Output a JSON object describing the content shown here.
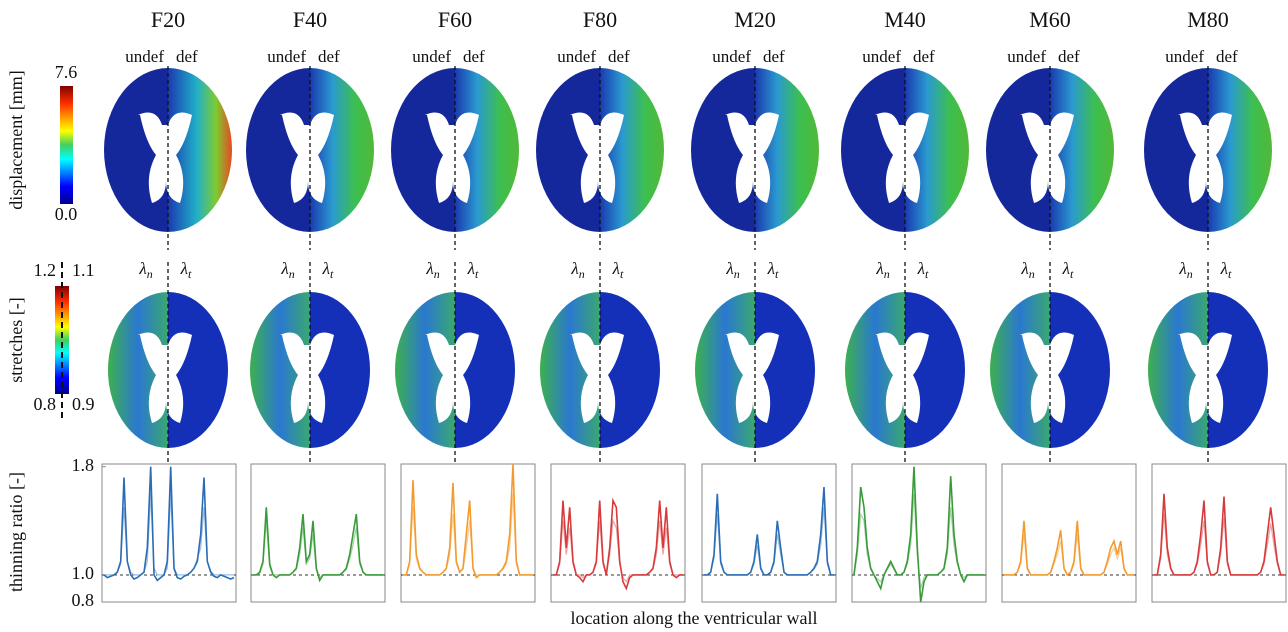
{
  "figure": {
    "columns": [
      "F20",
      "F40",
      "F60",
      "F80",
      "M20",
      "M40",
      "M60",
      "M80"
    ],
    "undeformed_label": "undef",
    "deformed_label": "def",
    "normal_stretch": {
      "symbol": "λ",
      "subscript": "n"
    },
    "tangential_stretch": {
      "symbol": "λ",
      "subscript": "t"
    },
    "displacement_colorbar": {
      "label": "displacement [mm]",
      "max": 7.6,
      "min": {
        "value": 0,
        "label": "0.0"
      }
    },
    "stretch_colorbar": {
      "label": "stretches [-]",
      "normal_max": 1.2,
      "tangential_max": 1.1,
      "normal_min": 0.8,
      "tangential_min": 0.9
    },
    "ylabel": "thinning ratio [-]",
    "xlabel": "location along the ventricular wall"
  },
  "chart_data": [
    {
      "type": "line",
      "ylim": [
        0.8,
        1.82
      ],
      "yticks": [
        0.8,
        {
          "value": 1,
          "label": "1.0"
        },
        1.8
      ],
      "hline": 1,
      "series": [
        {
          "color": "#2a6db5",
          "values": [
            1.0,
            0.98,
            0.99,
            1.0,
            1.02,
            1.1,
            1.72,
            1.1,
            1.0,
            0.97,
            0.98,
            1.0,
            1.02,
            1.2,
            1.8,
            1.0,
            0.96,
            0.98,
            1.0,
            1.1,
            1.8,
            1.05,
            0.98,
            0.97,
            0.99,
            1.0,
            1.02,
            1.05,
            1.1,
            1.3,
            1.72,
            1.1,
            1.02,
            0.99,
            0.98,
            1.0,
            0.99,
            0.98,
            0.97,
            0.98
          ]
        },
        {
          "color": "#9dbde0",
          "values": [
            1.0,
            1.0,
            1.0,
            1.0,
            1.02,
            1.08,
            1.5,
            1.1,
            1.02,
            1.0,
            1.0,
            1.0,
            1.02,
            1.1,
            1.6,
            1.05,
            1.0,
            1.0,
            1.0,
            1.05,
            1.6,
            1.05,
            1.0,
            1.0,
            1.0,
            1.0,
            1.02,
            1.05,
            1.12,
            1.2,
            1.5,
            1.1,
            1.03,
            1.0,
            1.0,
            1.0,
            1.0,
            1.0,
            1.0,
            1.0
          ]
        }
      ]
    },
    {
      "type": "line",
      "ylim": [
        0.8,
        1.82
      ],
      "hline": 1,
      "series": [
        {
          "color": "#3a9a3a",
          "values": [
            1.0,
            1.0,
            1.02,
            1.1,
            1.5,
            1.08,
            1.0,
            0.98,
            1.0,
            1.0,
            1.0,
            1.0,
            1.02,
            1.05,
            1.2,
            1.45,
            1.1,
            1.15,
            1.4,
            1.05,
            0.96,
            1.0,
            1.0,
            1.0,
            1.0,
            1.0,
            1.0,
            1.02,
            1.05,
            1.15,
            1.3,
            1.45,
            1.1,
            1.02,
            1.0,
            1.0,
            1.0,
            1.0,
            1.0,
            1.0
          ]
        },
        {
          "color": "#a6d3a6",
          "values": [
            1.0,
            1.0,
            1.01,
            1.08,
            1.4,
            1.06,
            1.0,
            1.0,
            1.0,
            1.0,
            1.0,
            1.0,
            1.02,
            1.04,
            1.15,
            1.35,
            1.08,
            1.12,
            1.3,
            1.04,
            0.98,
            1.0,
            1.0,
            1.0,
            1.0,
            1.0,
            1.0,
            1.02,
            1.04,
            1.12,
            1.22,
            1.35,
            1.08,
            1.02,
            1.0,
            1.0,
            1.0,
            1.0,
            1.0,
            1.0
          ]
        }
      ]
    },
    {
      "type": "line",
      "ylim": [
        0.8,
        1.82
      ],
      "hline": 1,
      "series": [
        {
          "color": "#f39b30",
          "values": [
            1.0,
            1.0,
            1.1,
            1.7,
            1.15,
            1.05,
            1.02,
            1.0,
            1.0,
            1.0,
            1.0,
            1.0,
            1.02,
            1.05,
            1.2,
            1.68,
            1.1,
            1.02,
            1.05,
            1.3,
            1.55,
            1.05,
            0.98,
            1.0,
            1.0,
            1.0,
            1.0,
            1.0,
            1.0,
            1.02,
            1.05,
            1.1,
            1.3,
            1.82,
            1.1,
            1.0,
            1.0,
            1.0,
            1.0,
            1.0
          ]
        },
        {
          "color": "#f8cd96",
          "values": [
            1.0,
            1.0,
            1.08,
            1.5,
            1.12,
            1.04,
            1.02,
            1.0,
            1.0,
            1.0,
            1.0,
            1.0,
            1.02,
            1.04,
            1.15,
            1.45,
            1.08,
            1.02,
            1.04,
            1.2,
            1.4,
            1.04,
            1.0,
            1.0,
            1.0,
            1.0,
            1.0,
            1.0,
            1.0,
            1.02,
            1.04,
            1.08,
            1.2,
            1.6,
            1.08,
            1.0,
            1.0,
            1.0,
            1.0,
            1.0
          ]
        }
      ]
    },
    {
      "type": "line",
      "ylim": [
        0.8,
        1.82
      ],
      "hline": 1,
      "series": [
        {
          "color": "#d63a3a",
          "values": [
            1.0,
            1.0,
            1.1,
            1.55,
            1.2,
            1.5,
            1.1,
            1.0,
            0.98,
            0.95,
            1.0,
            1.0,
            1.02,
            1.1,
            1.55,
            1.1,
            1.0,
            1.2,
            1.55,
            1.5,
            1.1,
            0.95,
            0.9,
            0.98,
            1.0,
            1.0,
            1.0,
            1.0,
            1.0,
            1.02,
            1.05,
            1.2,
            1.55,
            1.2,
            1.5,
            1.1,
            1.0,
            0.98,
            1.0,
            1.0
          ]
        },
        {
          "color": "#eea3a3",
          "values": [
            1.0,
            1.0,
            1.08,
            1.4,
            1.15,
            1.35,
            1.08,
            1.0,
            1.0,
            0.98,
            1.0,
            1.0,
            1.02,
            1.08,
            1.4,
            1.08,
            1.0,
            1.15,
            1.4,
            1.35,
            1.08,
            0.98,
            0.95,
            1.0,
            1.0,
            1.0,
            1.0,
            1.0,
            1.0,
            1.02,
            1.04,
            1.15,
            1.4,
            1.15,
            1.35,
            1.08,
            1.0,
            1.0,
            1.0,
            1.0
          ]
        }
      ]
    },
    {
      "type": "line",
      "ylim": [
        0.8,
        1.82
      ],
      "hline": 1,
      "series": [
        {
          "color": "#2a6db5",
          "values": [
            1.0,
            1.0,
            1.02,
            1.15,
            1.6,
            1.1,
            1.02,
            1.0,
            1.0,
            1.0,
            1.0,
            1.0,
            1.0,
            1.0,
            1.02,
            1.1,
            1.3,
            1.05,
            1.0,
            1.0,
            1.02,
            1.1,
            1.4,
            1.2,
            1.02,
            1.0,
            1.0,
            1.0,
            1.0,
            1.0,
            1.0,
            1.0,
            1.02,
            1.05,
            1.1,
            1.3,
            1.65,
            1.1,
            1.0,
            1.0
          ]
        },
        {
          "color": "#9dbde0",
          "values": [
            1.0,
            1.0,
            1.02,
            1.12,
            1.45,
            1.08,
            1.02,
            1.0,
            1.0,
            1.0,
            1.0,
            1.0,
            1.0,
            1.0,
            1.02,
            1.08,
            1.22,
            1.04,
            1.0,
            1.0,
            1.02,
            1.08,
            1.3,
            1.15,
            1.02,
            1.0,
            1.0,
            1.0,
            1.0,
            1.0,
            1.0,
            1.0,
            1.02,
            1.04,
            1.08,
            1.22,
            1.5,
            1.08,
            1.0,
            1.0
          ]
        }
      ]
    },
    {
      "type": "line",
      "ylim": [
        0.8,
        1.82
      ],
      "hline": 1,
      "series": [
        {
          "color": "#3a9a3a",
          "values": [
            1.0,
            1.2,
            1.65,
            1.5,
            1.2,
            1.05,
            1.0,
            0.95,
            0.9,
            1.0,
            1.05,
            1.1,
            1.05,
            1.0,
            1.0,
            1.02,
            1.1,
            1.3,
            1.8,
            1.2,
            0.8,
            0.95,
            1.0,
            1.0,
            1.0,
            1.0,
            1.02,
            1.05,
            1.2,
            1.73,
            1.3,
            1.1,
            1.0,
            0.95,
            1.0,
            1.0,
            1.0,
            1.0,
            1.0,
            1.0
          ]
        },
        {
          "color": "#a6d3a6",
          "values": [
            1.0,
            1.15,
            1.45,
            1.4,
            1.15,
            1.04,
            1.0,
            0.97,
            0.95,
            1.0,
            1.04,
            1.08,
            1.04,
            1.0,
            1.0,
            1.02,
            1.08,
            1.22,
            1.6,
            1.15,
            0.9,
            0.98,
            1.0,
            1.0,
            1.0,
            1.0,
            1.02,
            1.04,
            1.15,
            1.5,
            1.22,
            1.08,
            1.0,
            0.98,
            1.0,
            1.0,
            1.0,
            1.0,
            1.0,
            1.0
          ]
        }
      ]
    },
    {
      "type": "line",
      "ylim": [
        0.8,
        1.82
      ],
      "hline": 1,
      "series": [
        {
          "color": "#f39b30",
          "values": [
            1.0,
            1.0,
            1.0,
            1.0,
            1.02,
            1.1,
            1.4,
            1.05,
            1.0,
            1.0,
            1.0,
            1.0,
            1.0,
            1.0,
            1.02,
            1.1,
            1.2,
            1.33,
            1.05,
            1.0,
            1.02,
            1.1,
            1.4,
            1.05,
            1.0,
            1.0,
            1.0,
            1.0,
            1.0,
            1.0,
            1.02,
            1.1,
            1.2,
            1.25,
            1.15,
            1.25,
            1.05,
            1.0,
            1.0,
            1.0
          ]
        },
        {
          "color": "#f8cd96",
          "values": [
            1.0,
            1.0,
            1.0,
            1.0,
            1.02,
            1.08,
            1.3,
            1.04,
            1.0,
            1.0,
            1.0,
            1.0,
            1.0,
            1.0,
            1.02,
            1.08,
            1.15,
            1.25,
            1.04,
            1.0,
            1.02,
            1.08,
            1.3,
            1.04,
            1.0,
            1.0,
            1.0,
            1.0,
            1.0,
            1.0,
            1.02,
            1.08,
            1.15,
            1.2,
            1.12,
            1.2,
            1.04,
            1.0,
            1.0,
            1.0
          ]
        }
      ]
    },
    {
      "type": "line",
      "ylim": [
        0.8,
        1.82
      ],
      "hline": 1,
      "series": [
        {
          "color": "#d63a3a",
          "values": [
            1.0,
            1.0,
            1.15,
            1.6,
            1.2,
            1.05,
            1.0,
            1.0,
            1.0,
            1.0,
            1.0,
            1.0,
            1.02,
            1.1,
            1.3,
            1.55,
            1.1,
            1.0,
            1.0,
            1.02,
            1.2,
            1.58,
            1.1,
            1.0,
            1.0,
            1.0,
            1.0,
            1.0,
            1.0,
            1.0,
            1.0,
            1.0,
            1.02,
            1.1,
            1.3,
            1.5,
            1.3,
            1.1,
            1.0,
            1.0
          ]
        },
        {
          "color": "#eea3a3",
          "values": [
            1.0,
            1.0,
            1.12,
            1.45,
            1.15,
            1.04,
            1.0,
            1.0,
            1.0,
            1.0,
            1.0,
            1.0,
            1.02,
            1.08,
            1.22,
            1.4,
            1.08,
            1.0,
            1.0,
            1.02,
            1.15,
            1.42,
            1.08,
            1.0,
            1.0,
            1.0,
            1.0,
            1.0,
            1.0,
            1.0,
            1.0,
            1.0,
            1.02,
            1.08,
            1.22,
            1.38,
            1.22,
            1.08,
            1.0,
            1.0
          ]
        }
      ]
    }
  ]
}
